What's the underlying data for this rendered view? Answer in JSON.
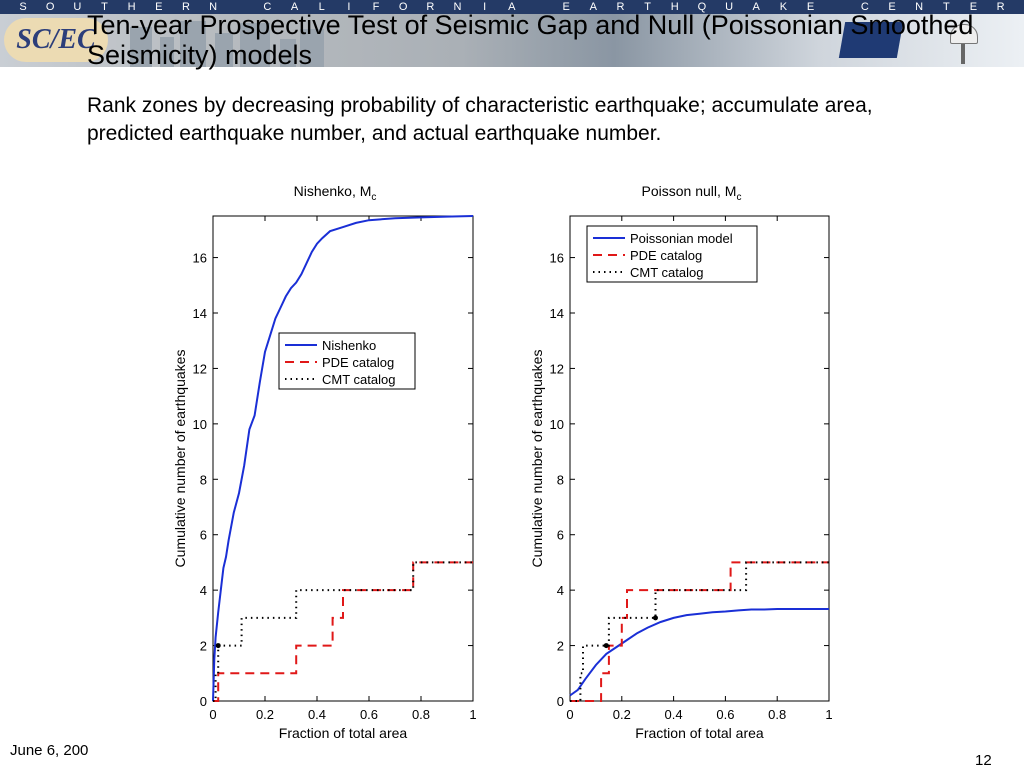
{
  "banner": {
    "letters": [
      "S",
      "O",
      "U",
      "T",
      "H",
      "E",
      "R",
      "N",
      "",
      "C",
      "A",
      "L",
      "I",
      "F",
      "O",
      "R",
      "N",
      "I",
      "A",
      "",
      "E",
      "A",
      "R",
      "T",
      "H",
      "Q",
      "U",
      "A",
      "K",
      "E",
      "",
      "C",
      "E",
      "N",
      "T",
      "E",
      "R"
    ],
    "logo_text": "SC/EC"
  },
  "slide": {
    "title": "Ten-year Prospective Test of Seismic Gap and Null (Poissonian Smoothed Seismicity) models",
    "subtitle": "Rank zones by decreasing probability of characteristic earthquake; accumulate area, predicted earthquake number, and actual earthquake number.",
    "date": "June 6, 200",
    "page": "12"
  },
  "colors": {
    "model": "#1a2fd6",
    "pde": "#e01818",
    "cmt": "#000000"
  },
  "chart_data": [
    {
      "type": "line",
      "title": "Nishenko, M",
      "title_subscript": "c",
      "xlabel": "Fraction of total area",
      "ylabel": "Cumulative number of earthquakes",
      "xlim": [
        0,
        1
      ],
      "ylim": [
        0,
        17.5
      ],
      "xticks": [
        "0",
        "0.2",
        "0.4",
        "0.6",
        "0.8",
        "1"
      ],
      "yticks": [
        "0",
        "2",
        "4",
        "6",
        "8",
        "10",
        "12",
        "14",
        "16"
      ],
      "legend_position": "center",
      "series": [
        {
          "name": "Nishenko",
          "style": "solid",
          "x": [
            0,
            0.005,
            0.01,
            0.02,
            0.03,
            0.04,
            0.05,
            0.06,
            0.08,
            0.1,
            0.12,
            0.14,
            0.16,
            0.18,
            0.2,
            0.22,
            0.24,
            0.26,
            0.28,
            0.3,
            0.32,
            0.34,
            0.36,
            0.38,
            0.4,
            0.42,
            0.45,
            0.5,
            0.55,
            0.6,
            0.7,
            0.8,
            0.9,
            1
          ],
          "y": [
            0,
            1.5,
            2.3,
            3.2,
            4,
            4.8,
            5.2,
            5.8,
            6.8,
            7.5,
            8.5,
            9.8,
            10.3,
            11.5,
            12.6,
            13.2,
            13.8,
            14.2,
            14.6,
            14.9,
            15.1,
            15.4,
            15.8,
            16.2,
            16.5,
            16.7,
            16.95,
            17.1,
            17.25,
            17.35,
            17.42,
            17.45,
            17.48,
            17.5
          ]
        },
        {
          "name": "PDE catalog",
          "style": "dashed",
          "step": true,
          "x": [
            0,
            0.02,
            0.32,
            0.46,
            0.5,
            0.77,
            1
          ],
          "y": [
            0,
            1,
            2,
            3,
            4,
            5,
            5
          ]
        },
        {
          "name": "CMT catalog",
          "style": "dotted",
          "step": true,
          "x": [
            0,
            0.01,
            0.02,
            0.11,
            0.32,
            0.48,
            0.77,
            1
          ],
          "y": [
            0,
            1,
            2,
            3,
            4,
            4,
            5,
            5
          ]
        }
      ],
      "markers": [
        {
          "x": 0.02,
          "y": 2
        }
      ]
    },
    {
      "type": "line",
      "title": "Poisson null, M",
      "title_subscript": "c",
      "xlabel": "Fraction of total area",
      "ylabel": "Cumulative number of earthquakes",
      "xlim": [
        0,
        1
      ],
      "ylim": [
        0,
        17.5
      ],
      "xticks": [
        "0",
        "0.2",
        "0.4",
        "0.6",
        "0.8",
        "1"
      ],
      "yticks": [
        "0",
        "2",
        "4",
        "6",
        "8",
        "10",
        "12",
        "14",
        "16"
      ],
      "legend_position": "top-left",
      "series": [
        {
          "name": "Poissonian model",
          "style": "solid",
          "x": [
            0,
            0.03,
            0.06,
            0.1,
            0.14,
            0.18,
            0.22,
            0.26,
            0.3,
            0.35,
            0.4,
            0.45,
            0.5,
            0.55,
            0.6,
            0.65,
            0.7,
            0.75,
            0.8,
            0.9,
            1
          ],
          "y": [
            0.2,
            0.4,
            0.8,
            1.3,
            1.7,
            1.95,
            2.2,
            2.45,
            2.65,
            2.85,
            3.0,
            3.1,
            3.15,
            3.2,
            3.23,
            3.27,
            3.3,
            3.3,
            3.32,
            3.32,
            3.32
          ]
        },
        {
          "name": "PDE catalog",
          "style": "dashed",
          "step": true,
          "x": [
            0,
            0.12,
            0.15,
            0.2,
            0.22,
            0.62,
            1
          ],
          "y": [
            0,
            1,
            2,
            3,
            4,
            5,
            5
          ]
        },
        {
          "name": "CMT catalog",
          "style": "dotted",
          "step": true,
          "x": [
            0,
            0.04,
            0.05,
            0.15,
            0.33,
            0.68,
            1
          ],
          "y": [
            0,
            1,
            2,
            3,
            4,
            5,
            5
          ]
        }
      ],
      "markers": [
        {
          "x": 0.14,
          "y": 2
        },
        {
          "x": 0.33,
          "y": 3
        }
      ]
    }
  ]
}
